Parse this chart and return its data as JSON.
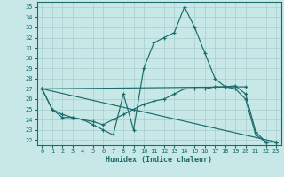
{
  "xlabel": "Humidex (Indice chaleur)",
  "ylabel": "",
  "xlim": [
    -0.5,
    23.5
  ],
  "ylim": [
    21.5,
    35.5
  ],
  "xticks": [
    0,
    1,
    2,
    3,
    4,
    5,
    6,
    7,
    8,
    9,
    10,
    11,
    12,
    13,
    14,
    15,
    16,
    17,
    18,
    19,
    20,
    21,
    22,
    23
  ],
  "yticks": [
    22,
    23,
    24,
    25,
    26,
    27,
    28,
    29,
    30,
    31,
    32,
    33,
    34,
    35
  ],
  "background_color": "#c8e8e8",
  "grid_color": "#b0d8d8",
  "line_color": "#1a6b6b",
  "lines": [
    {
      "x": [
        0,
        1,
        2,
        3,
        4,
        5,
        6,
        7,
        8,
        9,
        10,
        11,
        12,
        13,
        14,
        15,
        16,
        17,
        18,
        19,
        20,
        21,
        22,
        23
      ],
      "y": [
        27,
        25,
        24.2,
        24.2,
        24,
        23.5,
        23,
        22.5,
        26.5,
        23,
        29,
        31.5,
        32,
        32.5,
        35,
        33,
        30.5,
        28,
        27.2,
        27,
        26,
        22.5,
        21.8,
        21.8
      ]
    },
    {
      "x": [
        0,
        1,
        2,
        3,
        4,
        5,
        6,
        7,
        8,
        9,
        10,
        11,
        12,
        13,
        14,
        15,
        16,
        17,
        18,
        19,
        20,
        21,
        22,
        23
      ],
      "y": [
        27,
        25,
        24.5,
        24.2,
        24,
        23.8,
        23.5,
        24,
        24.5,
        25,
        25.5,
        25.8,
        26,
        26.5,
        27,
        27,
        27,
        27.2,
        27.2,
        27.3,
        26.5,
        22.8,
        21.8,
        21.8
      ]
    },
    {
      "x": [
        0,
        23
      ],
      "y": [
        27,
        21.8
      ]
    },
    {
      "x": [
        0,
        20
      ],
      "y": [
        27,
        27.2
      ]
    }
  ]
}
